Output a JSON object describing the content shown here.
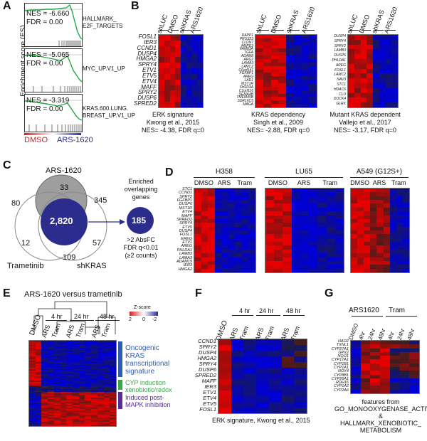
{
  "panelA": {
    "label": "A",
    "y_axis": "Enrichment score (ES)",
    "plots": [
      {
        "nes": "NES = -6.660",
        "fdr": "FDR = 0.00",
        "set1": "HALLMARK_",
        "set2": "E2F_TARGETS",
        "set3": ""
      },
      {
        "nes": "NES = -5.065",
        "fdr": "FDR = 0.00",
        "set1": "MYC_UP.V1_UP",
        "set2": "",
        "set3": ""
      },
      {
        "nes": "NES = -3.319",
        "fdr": "FDR = 0.00",
        "set1": "KRAS.600.LUNG.",
        "set2": "BREAST_UP.V1_UP",
        "set3": ""
      }
    ],
    "legend_dmso": "DMSO",
    "legend_ars": "ARS-1620",
    "dmso_color": "#d42020",
    "ars_color": "#2a2a9a"
  },
  "panelB": {
    "label": "B",
    "col_labels": [
      "shLUC",
      "DMSO",
      "shKRAS",
      "ARS1620"
    ],
    "heatmaps": [
      {
        "genes": [
          "FOSL1",
          "IER3",
          "CCND1",
          "DUSP4",
          "HMGA2",
          "SPRY4",
          "ETV1",
          "ETV5",
          "ETV4",
          "MAFF",
          "SPRY2",
          "DUSP6",
          "SPRED2"
        ],
        "caption": [
          "ERK signature",
          "Kwong et al., 2015",
          "NES= -4.38, FDR q=0"
        ]
      },
      {
        "genes": [
          "DAPP1",
          "PRSS23",
          "CLDN7",
          "AMPD3",
          "FAM83A",
          "TGFA",
          "ADAM8",
          "ARG2",
          "LAMA3",
          "LAMC2",
          "C6orf141",
          "FGFBP1",
          "AREG",
          "LAD1",
          "MST1R",
          "SH2D3A",
          "C1orf116",
          "SEMA4B",
          "TMEM45B",
          "SDR16C5",
          "MAGA"
        ],
        "caption": [
          "KRAS dependency",
          "Singh et al., 2009",
          "NES= -2.88, FDR q=0"
        ]
      },
      {
        "genes": [
          "DUSP4",
          "SPRY4",
          "SPRY2",
          "LAMB3",
          "DUSP6",
          "PHLDA1",
          "AREG",
          "FOSL1",
          "LAMC2",
          "NAV3",
          "STC1",
          "HDAC6",
          "CLU",
          "DOCK4",
          "GLRX"
        ],
        "caption": [
          "Mutant KRAS dependent",
          "Vallejo et al., 2017",
          "NES= -3.17, FDR q=0"
        ]
      }
    ]
  },
  "panelC": {
    "label": "C",
    "title_ars": "ARS-1620",
    "title_tram": "Trametinib",
    "title_sh": "shKRAS",
    "n33": "33",
    "n80": "80",
    "n345": "345",
    "n2820": "2,820",
    "n12": "12",
    "n57": "57",
    "n109": "109",
    "n185": "185",
    "enriched": [
      "Enriched",
      "overlapping",
      "genes"
    ],
    "criteria": [
      ">2 AbsFC",
      "FDR q<0.01",
      "(≥2 counts)"
    ]
  },
  "panelD": {
    "label": "D",
    "groups": [
      "H358",
      "LU65",
      "A549 (G12S+)"
    ],
    "conds": [
      "DMSO",
      "ARS",
      "Tram"
    ],
    "genes": [
      "STC1",
      "CCND1",
      "SPRY2",
      "FGFBP1",
      "DUSP6",
      "MST1R",
      "ETV4",
      "MAFF",
      "SPRED2",
      "SPRY4",
      "ETV5",
      "DUSP4",
      "FOSL1",
      "EREG",
      "ETV1",
      "AREG",
      "PHLDA1",
      "LAMB3",
      "LAMA3",
      "ADAM19",
      "IER3",
      "HMGA2"
    ]
  },
  "panelE": {
    "label": "E",
    "title": "ARS-1620 versus trametinib",
    "dmso": "DMSO",
    "times": [
      "4 hr",
      "24 hr",
      "48 hr"
    ],
    "ars": "ARS",
    "tram": "Tram",
    "zscore": "Z-score",
    "z_ticks": [
      "2",
      "0",
      "-2"
    ],
    "annotations": [
      {
        "text": [
          "Oncogenic",
          "KRAS",
          "transcriptional",
          "signature"
        ],
        "color": "#2e5db3"
      },
      {
        "text": [
          "CYP induction",
          "xenobiotic/redox"
        ],
        "color": "#36a84a"
      },
      {
        "text": [
          "Induced post-",
          "MAPK inhibition"
        ],
        "color": "#5a2a9a"
      }
    ]
  },
  "panelF": {
    "label": "F",
    "dmso": "DMSO",
    "times": [
      "4 hr",
      "24 hr",
      "48 hr"
    ],
    "ars": "ARS",
    "tram": "Tram",
    "genes": [
      "CCND1",
      "SPRY2",
      "DUSP4",
      "HMGA2",
      "SPRY4",
      "DUSP6",
      "SPRED2",
      "MAFF",
      "IER3",
      "ETV1",
      "ETV4",
      "ETV5",
      "FOSL1"
    ],
    "caption": "ERK signature, Kwong et al., 2015"
  },
  "panelG": {
    "label": "G",
    "groups": [
      "ARS1620",
      "Tram"
    ],
    "cols": [
      "DMSO",
      "4hr",
      "24hr",
      "48hr",
      "4hr",
      "24hr",
      "48hr"
    ],
    "genes": [
      "HAO2",
      "TXNL1",
      "CYP27A1",
      "GPX2",
      "NQO1",
      "CYP17A1",
      "CYP1B1",
      "CYP1A1",
      "NOX4",
      "CYP8B1",
      "CYP26A1",
      "RDH16",
      "CYP1A2",
      "CYP2A6"
    ],
    "caption": [
      "features from",
      "GO_MONOOXYGENASE_ACTIVITY &",
      "HALLMARK_XENOBIOTIC_",
      "METABOLISM"
    ]
  }
}
